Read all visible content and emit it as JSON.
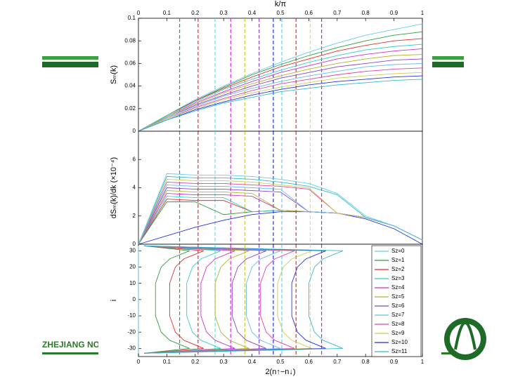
{
  "chart_data": [
    {
      "type": "line",
      "ylabel": "Sₘ(k)",
      "xlabel": "k/π",
      "xtick_position": "top",
      "xlim": [
        0,
        1
      ],
      "ylim": [
        0,
        0.1
      ],
      "xticks": [
        0,
        0.1,
        0.2,
        0.3,
        0.4,
        0.5,
        0.6,
        0.7,
        0.8,
        0.9,
        1
      ],
      "yticks": [
        0,
        0.02,
        0.04,
        0.06,
        0.08,
        0.1
      ],
      "x": [
        0,
        0.1,
        0.2,
        0.3,
        0.4,
        0.5,
        0.6,
        0.7,
        0.8,
        0.9,
        1
      ],
      "series": [
        {
          "color": "#66ccee",
          "values": [
            0,
            0.014,
            0.028,
            0.04,
            0.051,
            0.061,
            0.07,
            0.078,
            0.085,
            0.09,
            0.095
          ]
        },
        {
          "color": "#2e9e3e",
          "values": [
            0,
            0.014,
            0.027,
            0.039,
            0.05,
            0.059,
            0.067,
            0.074,
            0.08,
            0.085,
            0.088
          ]
        },
        {
          "color": "#e0302c",
          "values": [
            0,
            0.014,
            0.027,
            0.038,
            0.048,
            0.057,
            0.064,
            0.071,
            0.076,
            0.08,
            0.082
          ]
        },
        {
          "color": "#33cccc",
          "values": [
            0,
            0.014,
            0.026,
            0.037,
            0.046,
            0.054,
            0.061,
            0.067,
            0.072,
            0.075,
            0.077
          ]
        },
        {
          "color": "#cc33cc",
          "values": [
            0,
            0.013,
            0.025,
            0.035,
            0.044,
            0.052,
            0.058,
            0.064,
            0.068,
            0.071,
            0.073
          ]
        },
        {
          "color": "#b3b32a",
          "values": [
            0,
            0.013,
            0.024,
            0.034,
            0.042,
            0.049,
            0.055,
            0.06,
            0.064,
            0.067,
            0.068
          ]
        },
        {
          "color": "#8844cc",
          "values": [
            0,
            0.012,
            0.023,
            0.032,
            0.04,
            0.047,
            0.052,
            0.057,
            0.06,
            0.063,
            0.064
          ]
        },
        {
          "color": "#66bbee",
          "values": [
            0,
            0.012,
            0.022,
            0.031,
            0.038,
            0.044,
            0.049,
            0.053,
            0.057,
            0.059,
            0.06
          ]
        },
        {
          "color": "#dd44aa",
          "values": [
            0,
            0.011,
            0.021,
            0.029,
            0.036,
            0.042,
            0.046,
            0.05,
            0.053,
            0.055,
            0.056
          ]
        },
        {
          "color": "#cccc55",
          "values": [
            0,
            0.011,
            0.02,
            0.028,
            0.034,
            0.039,
            0.043,
            0.047,
            0.049,
            0.051,
            0.052
          ]
        },
        {
          "color": "#2233dd",
          "values": [
            0,
            0.01,
            0.019,
            0.026,
            0.032,
            0.037,
            0.041,
            0.044,
            0.046,
            0.048,
            0.049
          ]
        },
        {
          "color": "#33bbcc",
          "values": [
            0,
            0.01,
            0.018,
            0.025,
            0.03,
            0.035,
            0.038,
            0.041,
            0.043,
            0.045,
            0.046
          ]
        }
      ]
    },
    {
      "type": "line",
      "ylabel": "dSₘ(k)/dk (×10⁻⁴)",
      "xlim": [
        0,
        1
      ],
      "ylim": [
        0,
        8
      ],
      "yticks": [
        0,
        2,
        4,
        6
      ],
      "x": [
        0,
        0.1,
        0.2,
        0.3,
        0.4,
        0.5,
        0.6,
        0.7,
        0.8,
        0.9,
        1
      ],
      "series": [
        {
          "color": "#2233dd",
          "values": [
            0,
            0.6,
            1.2,
            1.7,
            2.1,
            2.3,
            2.3,
            2.2,
            1.8,
            1.1,
            0
          ]
        },
        {
          "color": "#2e9e3e",
          "values": [
            0,
            3.0,
            3.0,
            2.1,
            2.3,
            2.4,
            2.3,
            2.2,
            1.9,
            1.3,
            0.3
          ]
        },
        {
          "color": "#e0302c",
          "values": [
            0,
            3.2,
            3.1,
            3.1,
            2.3,
            2.4,
            2.3,
            2.2,
            1.9,
            1.3,
            0.3
          ]
        },
        {
          "color": "#33cccc",
          "values": [
            0,
            3.4,
            3.3,
            3.3,
            2.3,
            2.4,
            2.3,
            2.2,
            1.9,
            1.3,
            0.3
          ]
        },
        {
          "color": "#cc33cc",
          "values": [
            0,
            3.6,
            3.5,
            3.5,
            3.4,
            2.4,
            2.3,
            2.2,
            1.9,
            1.3,
            0.3
          ]
        },
        {
          "color": "#b3b32a",
          "values": [
            0,
            3.8,
            3.7,
            3.7,
            3.6,
            2.4,
            2.3,
            2.2,
            1.9,
            1.3,
            0.3
          ]
        },
        {
          "color": "#8844cc",
          "values": [
            0,
            4.0,
            3.9,
            3.9,
            3.8,
            3.7,
            2.3,
            2.2,
            1.9,
            1.3,
            0.3
          ]
        },
        {
          "color": "#66bbee",
          "values": [
            0,
            4.2,
            4.1,
            4.1,
            4.0,
            3.9,
            2.3,
            2.2,
            1.9,
            1.3,
            0.3
          ]
        },
        {
          "color": "#dd44aa",
          "values": [
            0,
            4.4,
            4.3,
            4.3,
            4.2,
            4.1,
            3.9,
            2.2,
            1.9,
            1.3,
            0.3
          ]
        },
        {
          "color": "#cccc55",
          "values": [
            0,
            4.6,
            4.5,
            4.5,
            4.4,
            4.2,
            4.0,
            2.2,
            1.9,
            1.3,
            0.3
          ]
        },
        {
          "color": "#33bbcc",
          "values": [
            0,
            4.8,
            4.7,
            4.7,
            4.6,
            4.4,
            4.1,
            3.5,
            1.9,
            1.3,
            0.3
          ]
        },
        {
          "color": "#66ccee",
          "values": [
            0,
            5.0,
            4.9,
            4.9,
            4.8,
            4.6,
            4.3,
            3.6,
            2.0,
            1.3,
            0.3
          ]
        }
      ]
    },
    {
      "type": "profile",
      "ylabel": "i",
      "xlabel": "2(n↑−n↓)",
      "xtick_position": "bottom",
      "xlim": [
        0,
        1
      ],
      "ylim": [
        -35,
        34
      ],
      "xticks": [
        0,
        0.1,
        0.2,
        0.3,
        0.4,
        0.5,
        0.6,
        0.7,
        0.8,
        0.9,
        1
      ],
      "yticks": [
        -30,
        -20,
        -10,
        0,
        10,
        20,
        30
      ],
      "y": [
        -33,
        -30,
        -25,
        -20,
        -10,
        0,
        10,
        20,
        25,
        30,
        33
      ],
      "legend": "upper right",
      "series": [
        {
          "name": "Sz=0",
          "color": "#66ccee",
          "values": [
            0,
            0,
            0,
            0,
            0,
            0,
            0,
            0,
            0,
            0,
            0
          ]
        },
        {
          "name": "Sz=1",
          "color": "#2e9e3e",
          "values": [
            0.02,
            0.18,
            0.11,
            0.08,
            0.06,
            0.06,
            0.06,
            0.08,
            0.11,
            0.18,
            0.02
          ]
        },
        {
          "name": "Sz=2",
          "color": "#e0302c",
          "values": [
            0.02,
            0.23,
            0.16,
            0.13,
            0.11,
            0.11,
            0.11,
            0.13,
            0.16,
            0.23,
            0.02
          ]
        },
        {
          "name": "Sz=3",
          "color": "#33cccc",
          "values": [
            0.02,
            0.29,
            0.22,
            0.19,
            0.17,
            0.17,
            0.17,
            0.19,
            0.22,
            0.29,
            0.02
          ]
        },
        {
          "name": "Sz=4",
          "color": "#cc33cc",
          "values": [
            0.02,
            0.34,
            0.27,
            0.24,
            0.22,
            0.22,
            0.22,
            0.24,
            0.27,
            0.34,
            0.02
          ]
        },
        {
          "name": "Sz=5",
          "color": "#b3b32a",
          "values": [
            0.02,
            0.39,
            0.32,
            0.29,
            0.27,
            0.27,
            0.27,
            0.29,
            0.32,
            0.39,
            0.02
          ]
        },
        {
          "name": "Sz=6",
          "color": "#8844cc",
          "values": [
            0.02,
            0.45,
            0.38,
            0.35,
            0.33,
            0.33,
            0.33,
            0.35,
            0.38,
            0.45,
            0.02
          ]
        },
        {
          "name": "Sz=7",
          "color": "#66bbee",
          "values": [
            0.02,
            0.5,
            0.43,
            0.4,
            0.38,
            0.38,
            0.38,
            0.4,
            0.43,
            0.5,
            0.02
          ]
        },
        {
          "name": "Sz=8",
          "color": "#dd44aa",
          "values": [
            0.02,
            0.55,
            0.48,
            0.45,
            0.43,
            0.43,
            0.43,
            0.45,
            0.48,
            0.55,
            0.02
          ]
        },
        {
          "name": "Sz=9",
          "color": "#cccc55",
          "values": [
            0.02,
            0.61,
            0.54,
            0.51,
            0.49,
            0.49,
            0.49,
            0.51,
            0.54,
            0.61,
            0.02
          ]
        },
        {
          "name": "Sz=10",
          "color": "#2233dd",
          "values": [
            0.02,
            0.66,
            0.59,
            0.56,
            0.54,
            0.54,
            0.54,
            0.56,
            0.59,
            0.66,
            0.02
          ]
        },
        {
          "name": "Sz=11",
          "color": "#33bbcc",
          "values": [
            0.02,
            0.72,
            0.65,
            0.62,
            0.6,
            0.6,
            0.6,
            0.62,
            0.65,
            0.72,
            0.02
          ]
        }
      ]
    }
  ],
  "vlines": [
    {
      "x": 0.145,
      "color": "#2e9e3e"
    },
    {
      "x": 0.21,
      "color": "#e0302c"
    },
    {
      "x": 0.27,
      "color": "#66dddd"
    },
    {
      "x": 0.325,
      "color": "#cc33cc"
    },
    {
      "x": 0.375,
      "color": "#c8c83a"
    },
    {
      "x": 0.425,
      "color": "#8844cc"
    },
    {
      "x": 0.475,
      "color": "#2233dd"
    },
    {
      "x": 0.505,
      "color": "#66ccee"
    },
    {
      "x": 0.555,
      "color": "#e0302c"
    },
    {
      "x": 0.605,
      "color": "#dddd88"
    },
    {
      "x": 0.645,
      "color": "#aa33cc"
    }
  ],
  "footer_text": "ZHEJIANG NO"
}
